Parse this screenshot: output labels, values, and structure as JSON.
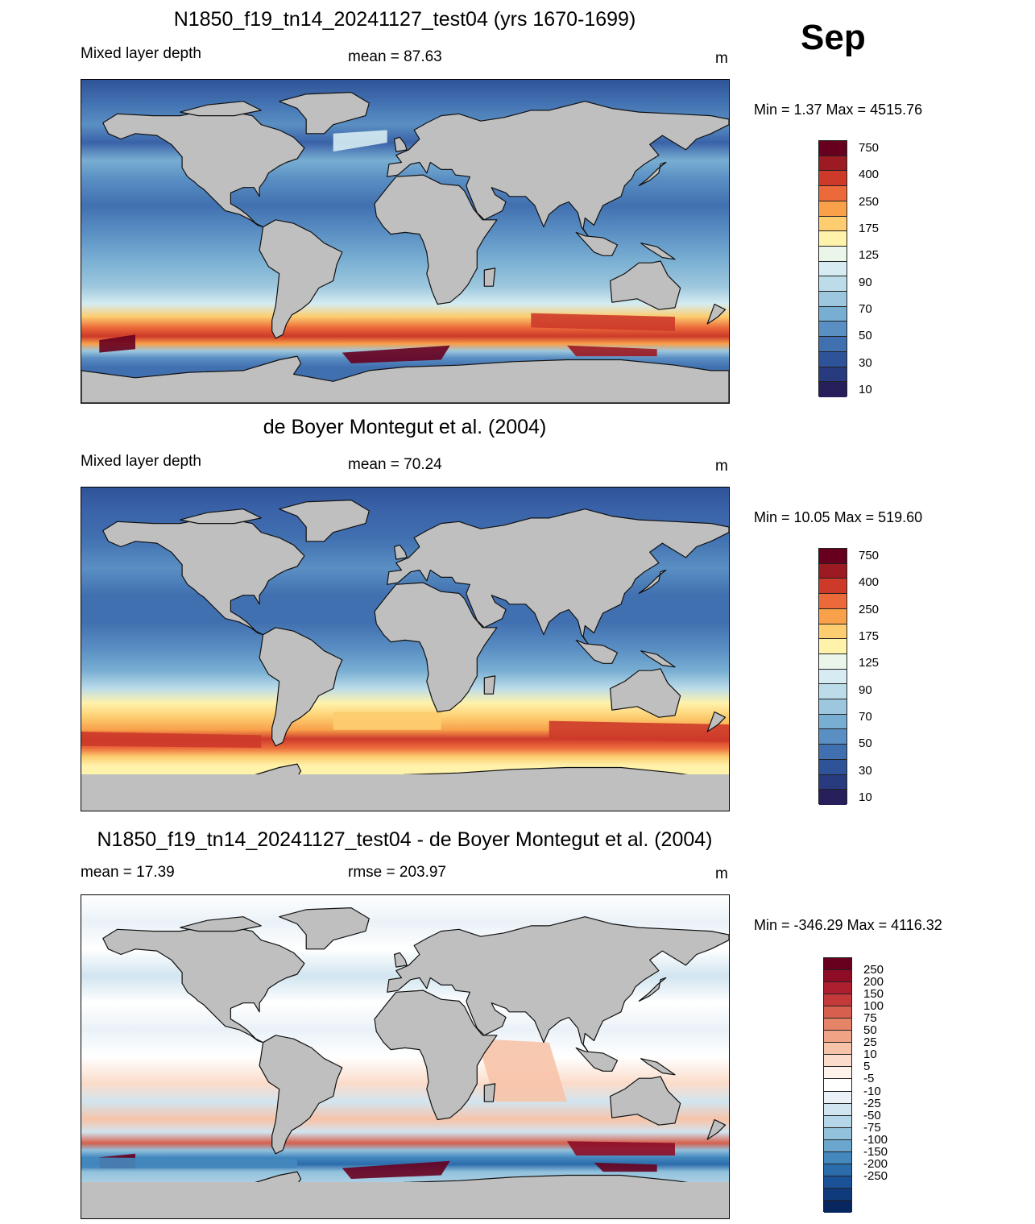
{
  "month": "Sep",
  "units": "m",
  "panels": [
    {
      "title": "N1850_f19_tn14_20241127_test04 (yrs 1670-1699)",
      "left_label": "Mixed layer depth",
      "center_label": "mean =  87.63",
      "right_label": "m",
      "minmax": "Min =    1.37 Max = 4515.76",
      "colorbar": {
        "labels": [
          "750",
          "400",
          "250",
          "175",
          "125",
          "90",
          "70",
          "50",
          "30",
          "10"
        ],
        "colors": [
          "#67001f",
          "#9c1a22",
          "#cd3a2a",
          "#ec6a3a",
          "#f8a04a",
          "#fdcd6f",
          "#fff2ab",
          "#eaf6ea",
          "#d6ecf2",
          "#bcdcea",
          "#9dc7de",
          "#78aed2",
          "#5a8fc3",
          "#4170b0",
          "#2f5398",
          "#283b7e",
          "#271e5c"
        ]
      },
      "scheme": "model"
    },
    {
      "title": "de Boyer Montegut et al. (2004)",
      "left_label": "Mixed layer depth",
      "center_label": "mean =  70.24",
      "right_label": "m",
      "minmax": "Min =  10.05 Max = 519.60",
      "colorbar": {
        "labels": [
          "750",
          "400",
          "250",
          "175",
          "125",
          "90",
          "70",
          "50",
          "30",
          "10"
        ],
        "colors": [
          "#67001f",
          "#9c1a22",
          "#cd3a2a",
          "#ec6a3a",
          "#f8a04a",
          "#fdcd6f",
          "#fff2ab",
          "#eaf6ea",
          "#d6ecf2",
          "#bcdcea",
          "#9dc7de",
          "#78aed2",
          "#5a8fc3",
          "#4170b0",
          "#2f5398",
          "#283b7e",
          "#271e5c"
        ]
      },
      "scheme": "obs"
    },
    {
      "title": "N1850_f19_tn14_20241127_test04 - de Boyer Montegut et al. (2004)",
      "left_label": "mean =  17.39",
      "center_label": "rmse = 203.97",
      "right_label": "m",
      "minmax": "Min = -346.29 Max = 4116.32",
      "colorbar": {
        "labels": [
          "250",
          "200",
          "150",
          "100",
          "75",
          "50",
          "25",
          "10",
          "5",
          "-5",
          "-10",
          "-25",
          "-50",
          "-75",
          "-100",
          "-150",
          "-200",
          "-250"
        ],
        "colors": [
          "#67001f",
          "#8e0c26",
          "#ad1e2e",
          "#c4393a",
          "#d6604d",
          "#e58466",
          "#f0a486",
          "#f7c3a8",
          "#fbdcca",
          "#fff2ea",
          "#ffffff",
          "#eaf2f8",
          "#d1e5f0",
          "#b5d5e8",
          "#92c1dc",
          "#6aa6cd",
          "#4488be",
          "#2b6cab",
          "#1b5197",
          "#0f3a7b",
          "#08275e"
        ]
      },
      "scheme": "diff"
    }
  ]
}
